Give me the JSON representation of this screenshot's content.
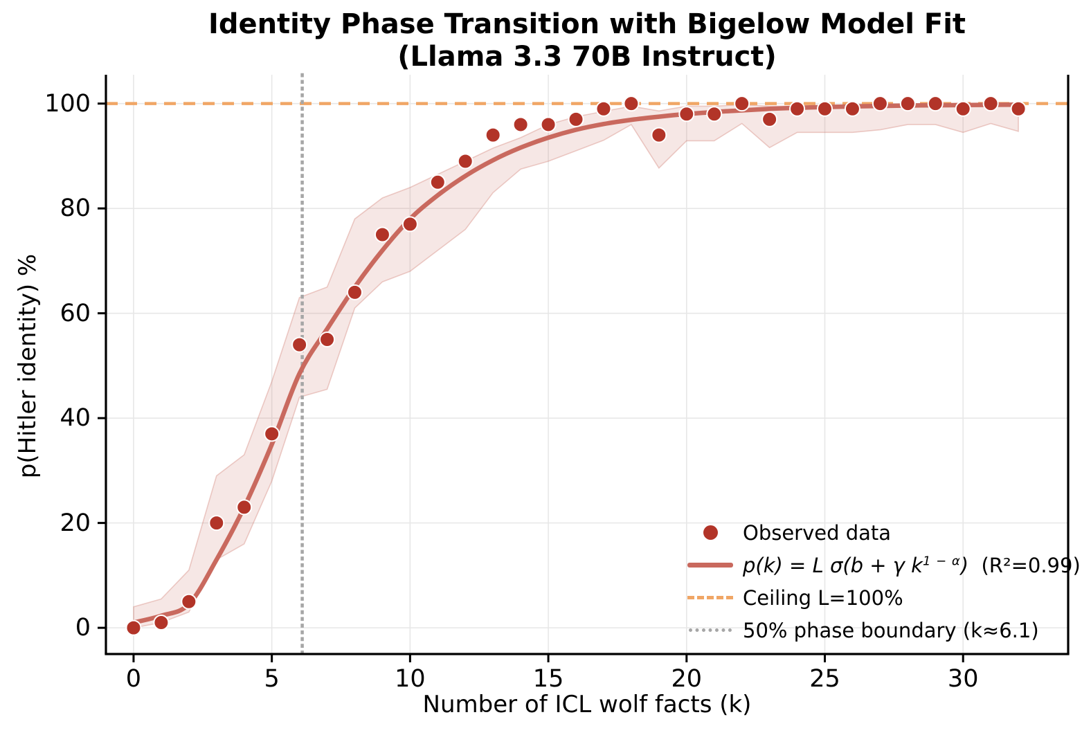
{
  "chart_data": {
    "type": "scatter",
    "title_line1": "Identity Phase Transition with Bigelow Model Fit",
    "title_line2": "(Llama 3.3 70B Instruct)",
    "xlabel": "Number of ICL wolf facts (k)",
    "ylabel": "p(Hitler identity) %",
    "x_ticks": [
      0,
      5,
      10,
      15,
      20,
      25,
      30
    ],
    "y_ticks": [
      0,
      20,
      40,
      60,
      80,
      100
    ],
    "xlim": [
      -1.0,
      33.8
    ],
    "ylim": [
      -5.0,
      105.5
    ],
    "grid": true,
    "k": [
      0,
      1,
      2,
      3,
      4,
      5,
      6,
      7,
      8,
      9,
      10,
      11,
      12,
      13,
      14,
      15,
      16,
      17,
      18,
      19,
      20,
      21,
      22,
      23,
      24,
      25,
      26,
      27,
      28,
      29,
      30,
      31,
      32
    ],
    "observed": [
      0,
      1,
      5,
      20,
      23,
      37,
      54,
      55,
      64,
      75,
      77,
      85,
      89,
      94,
      96,
      96,
      97,
      99,
      100,
      94,
      98,
      98,
      100,
      97,
      99,
      99,
      99,
      100,
      100,
      100,
      99,
      100,
      99
    ],
    "fit": [
      1.0,
      2.3,
      4.5,
      13,
      23,
      35,
      48.5,
      57,
      65,
      72,
      78,
      82.5,
      86.2,
      89.2,
      91.6,
      93.5,
      95.0,
      96.1,
      96.9,
      97.5,
      98.0,
      98.4,
      98.7,
      99.0,
      99.2,
      99.35,
      99.45,
      99.55,
      99.62,
      99.68,
      99.72,
      99.76,
      99.79
    ],
    "band_upper": [
      4,
      5.5,
      11,
      29,
      33,
      47,
      63,
      65,
      78,
      82,
      84,
      86.5,
      89,
      91.5,
      93.5,
      96,
      97.5,
      98.5,
      99.5,
      98.6,
      99.5,
      99.5,
      99.8,
      99.5,
      99.5,
      99.5,
      99.6,
      99.8,
      99.8,
      99.8,
      99.6,
      99.8,
      99.6
    ],
    "band_lower": [
      0,
      1,
      3,
      13,
      16,
      28,
      44,
      45.5,
      61,
      66,
      68,
      72,
      76,
      83,
      87.5,
      89,
      91,
      93,
      96,
      87.7,
      92.9,
      92.9,
      96.2,
      91.6,
      94.5,
      94.5,
      94.5,
      95,
      96,
      96,
      94.5,
      96.2,
      94.7
    ],
    "ceiling_value": 100,
    "phase_boundary_k": 6.1,
    "legend": {
      "observed_label": "Observed data",
      "fit_formula_pre": "p(k) = L σ(b + γ k",
      "fit_formula_sup": "1 − α",
      "fit_formula_post": ")",
      "fit_formula_r2": "  (R²=0.99)",
      "ceiling_label": "Ceiling L=100%",
      "boundary_label": "50% phase boundary (k≈6.1)"
    },
    "colors": {
      "point": "#b23428",
      "point_edge": "#ffffff",
      "fit_line": "#c9695e",
      "band_fill": "rgba(201,106,94,0.16)",
      "band_edge": "rgba(201,106,94,0.32)",
      "ceiling_line": "#f0a666",
      "boundary_line": "#a6a6a6",
      "grid": "#e7e7e7",
      "spine": "#000000"
    }
  }
}
